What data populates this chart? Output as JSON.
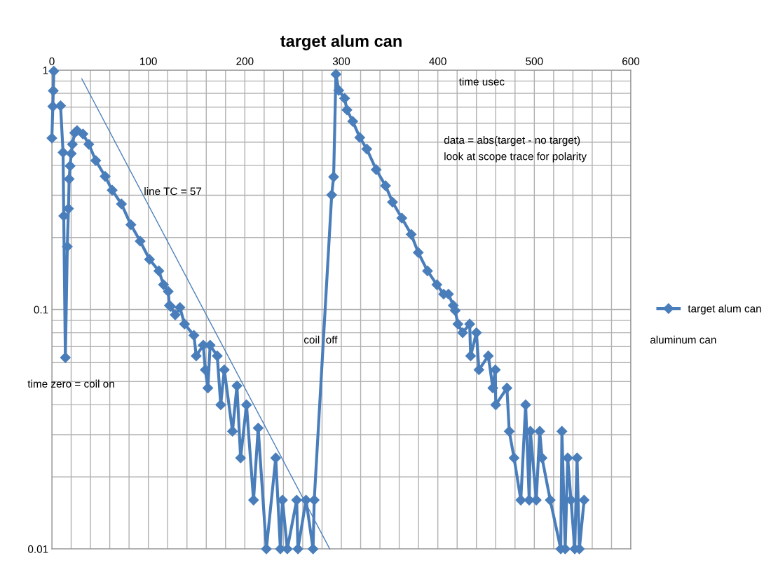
{
  "chart_data": {
    "type": "line",
    "title": "target alum can",
    "xlabel": "time usec",
    "log": "y",
    "grid": true,
    "legend": "right",
    "marker": "diamond",
    "line_style": "solid",
    "xlim": [
      0,
      600
    ],
    "ylim": [
      0.01,
      1
    ],
    "xticks": [
      0,
      {
        "value": 20,
        "label": null
      },
      {
        "value": 40,
        "label": null
      },
      {
        "value": 60,
        "label": null
      },
      {
        "value": 80,
        "label": null
      },
      100,
      {
        "value": 120,
        "label": null
      },
      {
        "value": 140,
        "label": null
      },
      {
        "value": 160,
        "label": null
      },
      {
        "value": 180,
        "label": null
      },
      200,
      {
        "value": 220,
        "label": null
      },
      {
        "value": 240,
        "label": null
      },
      {
        "value": 260,
        "label": null
      },
      {
        "value": 280,
        "label": null
      },
      300,
      {
        "value": 320,
        "label": null
      },
      {
        "value": 340,
        "label": null
      },
      {
        "value": 360,
        "label": null
      },
      {
        "value": 380,
        "label": null
      },
      400,
      {
        "value": 420,
        "label": null
      },
      {
        "value": 440,
        "label": null
      },
      {
        "value": 460,
        "label": null
      },
      {
        "value": 480,
        "label": null
      },
      500,
      {
        "value": 520,
        "label": null
      },
      {
        "value": 540,
        "label": null
      },
      {
        "value": 560,
        "label": null
      },
      {
        "value": 580,
        "label": null
      },
      600
    ],
    "yticks": [
      0.01,
      {
        "value": 0.02,
        "label": null
      },
      {
        "value": 0.03,
        "label": null
      },
      {
        "value": 0.04,
        "label": null
      },
      {
        "value": 0.05,
        "label": null
      },
      {
        "value": 0.06,
        "label": null
      },
      {
        "value": 0.07,
        "label": null
      },
      {
        "value": 0.08,
        "label": null
      },
      {
        "value": 0.09,
        "label": null
      },
      0.1,
      {
        "value": 0.2,
        "label": null
      },
      {
        "value": 0.3,
        "label": null
      },
      {
        "value": 0.4,
        "label": null
      },
      {
        "value": 0.5,
        "label": null
      },
      {
        "value": 0.6,
        "label": null
      },
      {
        "value": 0.7,
        "label": null
      },
      {
        "value": 0.8,
        "label": null
      },
      {
        "value": 0.9,
        "label": null
      },
      1
    ],
    "annotations": [
      "line TC = 57",
      "data = abs(target - no target)",
      "look at scope trace for polarity",
      "coil  off",
      "time zero = coil on",
      "aluminum can"
    ],
    "series": [
      {
        "name": "target alum can",
        "color": "#4a7ebb",
        "x": [
          0,
          1,
          1.5,
          2,
          4,
          9,
          11.6,
          12.3,
          14,
          16,
          17.2,
          17.9,
          18.9,
          20.1,
          21.3,
          23.7,
          26.1,
          32.2,
          38.3,
          45.5,
          55.2,
          62.5,
          72.1,
          81.9,
          91.5,
          101.2,
          110.9,
          115.7,
          120.6,
          121.8,
          123,
          127.8,
          132.7,
          137.5,
          147.2,
          149.6,
          156.9,
          159,
          161.7,
          164,
          171.4,
          175,
          178.7,
          187.2,
          191.8,
          195.6,
          201.7,
          209,
          213.8,
          222.3,
          232,
          236.8,
          239,
          244,
          253.7,
          255,
          263.4,
          270.7,
          271.9,
          290,
          292,
          294.4,
          297.3,
          303.4,
          305.8,
          311.8,
          319.1,
          326.4,
          336.1,
          345.8,
          353,
          362.7,
          372.4,
          379.7,
          389.3,
          399,
          406,
          411,
          416,
          418,
          420.8,
          425.7,
          433,
          434,
          440,
          442.6,
          452.3,
          457,
          459.6,
          460,
          471.6,
          474,
          479,
          486,
          491,
          494.7,
          495.9,
          502,
          505.6,
          508,
          516.5,
          527.4,
          528.6,
          532,
          534.6,
          538,
          541.9,
          544.3,
          546.7,
          551.6
        ],
        "values": [
          0.52,
          0.705,
          0.82,
          0.99,
          null,
          0.71,
          0.453,
          0.246,
          0.063,
          0.183,
          0.264,
          0.351,
          0.398,
          0.448,
          0.49,
          0.547,
          0.559,
          0.541,
          0.49,
          0.419,
          0.36,
          0.315,
          0.276,
          0.226,
          0.193,
          0.162,
          0.145,
          0.127,
          0.119,
          0.104,
          0.103,
          0.095,
          0.102,
          0.087,
          0.078,
          0.064,
          0.071,
          0.056,
          0.047,
          0.071,
          0.064,
          0.04,
          0.056,
          0.031,
          0.048,
          0.024,
          0.04,
          0.016,
          0.032,
          0.01,
          0.024,
          0.01,
          0.016,
          0.01,
          0.016,
          0.01,
          0.016,
          0.01,
          0.016,
          0.301,
          0.358,
          0.961,
          0.823,
          0.762,
          0.682,
          0.611,
          0.523,
          0.468,
          0.384,
          0.329,
          0.281,
          0.241,
          0.206,
          0.173,
          0.145,
          0.127,
          0.116,
          0.116,
          0.104,
          0.099,
          0.087,
          0.08,
          0.087,
          0.064,
          0.08,
          0.056,
          0.064,
          0.047,
          0.056,
          0.04,
          0.047,
          0.031,
          0.024,
          0.016,
          0.04,
          0.016,
          0.031,
          0.016,
          0.031,
          0.024,
          0.016,
          0.01,
          0.031,
          0.01,
          0.024,
          0.016,
          0.01,
          0.024,
          0.01,
          0.016
        ]
      },
      {
        "color": "#4f81bd",
        "marker": "none",
        "x": [
          31,
          288
        ],
        "values": [
          0.92,
          0.01
        ]
      }
    ]
  }
}
